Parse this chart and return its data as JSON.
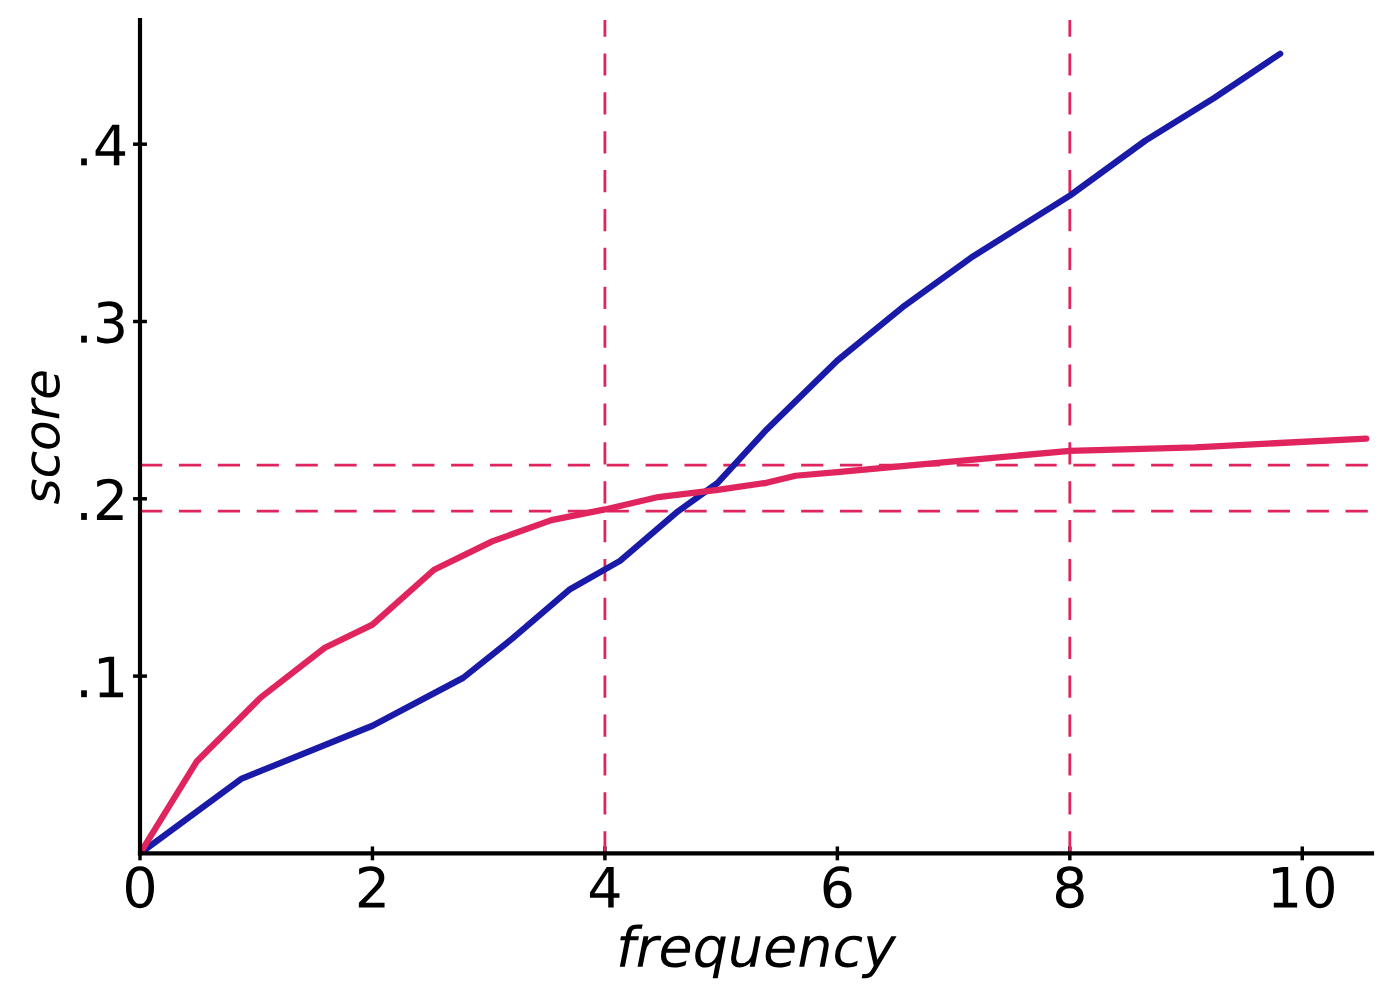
{
  "chart_data": {
    "type": "line",
    "xlabel": "frequency",
    "ylabel": "score",
    "xlim": [
      0,
      10.6
    ],
    "ylim": [
      0,
      0.47
    ],
    "xticks": [
      0,
      2,
      4,
      6,
      8,
      10
    ],
    "yticks": [
      {
        "value": 0.1,
        "label": ".1"
      },
      {
        "value": 0.2,
        "label": ".2"
      },
      {
        "value": 0.3,
        "label": ".3"
      },
      {
        "value": 0.4,
        "label": ".4"
      }
    ],
    "grid": false,
    "legend": false,
    "marker": "none",
    "line_style": "solid",
    "series": [
      {
        "color": "#1a1aa8",
        "x": [
          0,
          0.87,
          2,
          2.78,
          3.2,
          3.7,
          4.13,
          4.63,
          4.97,
          5.39,
          6,
          6.56,
          7.15,
          8,
          8.65,
          9.24,
          9.81
        ],
        "values": [
          0,
          0.042,
          0.072,
          0.099,
          0.121,
          0.149,
          0.165,
          0.193,
          0.209,
          0.239,
          0.278,
          0.308,
          0.336,
          0.371,
          0.402,
          0.426,
          0.451
        ]
      },
      {
        "color": "#e0245e",
        "x": [
          0,
          0.49,
          1.04,
          1.59,
          2,
          2.53,
          3.03,
          3.54,
          4,
          4.46,
          4.97,
          5.39,
          5.64,
          6,
          6.98,
          8,
          9.08,
          10.55
        ],
        "values": [
          0,
          0.052,
          0.088,
          0.116,
          0.129,
          0.16,
          0.176,
          0.188,
          0.194,
          0.201,
          0.205,
          0.209,
          0.213,
          0.215,
          0.221,
          0.227,
          0.229,
          0.234
        ]
      }
    ],
    "ref_lines": [
      {
        "axis": "y",
        "value": 0.219,
        "color": "#e0245e",
        "line_style": "dashed"
      },
      {
        "axis": "y",
        "value": 0.193,
        "color": "#e0245e",
        "line_style": "dashed"
      },
      {
        "axis": "x",
        "value": 4,
        "color": "#e0245e",
        "line_style": "dashed"
      },
      {
        "axis": "x",
        "value": 8,
        "color": "#e0245e",
        "line_style": "dashed"
      }
    ]
  }
}
